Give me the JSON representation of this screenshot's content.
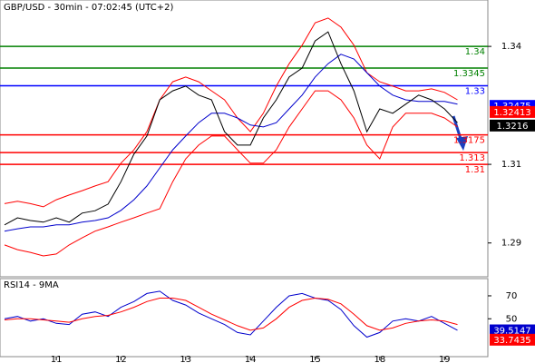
{
  "chart_data": [
    {
      "type": "line",
      "title": "GBP/USD - 30min - 07:02:45 (UTC+2)",
      "x": [
        0.2,
        0.4,
        0.6,
        0.8,
        1.0,
        1.2,
        1.4,
        1.6,
        1.8,
        2.0,
        2.2,
        2.4,
        2.6,
        2.8,
        3.0,
        3.2,
        3.4,
        3.6,
        3.8,
        4.0,
        4.2,
        4.4,
        4.6,
        4.8,
        5.0,
        5.2,
        5.4,
        5.6,
        5.8,
        6.0,
        6.2,
        6.4,
        6.6,
        6.8,
        7.0,
        7.2
      ],
      "xlim": [
        0.13,
        7.67
      ],
      "ylim": [
        1.2814,
        1.3518
      ],
      "yticks": [
        1.29,
        1.31,
        1.34
      ],
      "series": [
        {
          "color": "#ff0000",
          "values": [
            1.3,
            1.3006,
            1.3,
            1.2992,
            1.301,
            1.3022,
            1.3033,
            1.3045,
            1.3056,
            1.3103,
            1.3137,
            1.3183,
            1.3264,
            1.331,
            1.3322,
            1.331,
            1.3287,
            1.3264,
            1.3218,
            1.3183,
            1.323,
            1.3299,
            1.3356,
            1.3403,
            1.346,
            1.3472,
            1.3449,
            1.3403,
            1.3333,
            1.331,
            1.3299,
            1.3287,
            1.3287,
            1.3292,
            1.3283,
            1.3264
          ]
        },
        {
          "color": "#ff0000",
          "values": [
            1.2895,
            1.2883,
            1.2876,
            1.2867,
            1.2872,
            1.2895,
            1.2913,
            1.293,
            1.2941,
            1.2953,
            1.2964,
            1.2976,
            1.2987,
            1.3056,
            1.3114,
            1.3149,
            1.3172,
            1.3172,
            1.3137,
            1.3103,
            1.3103,
            1.3137,
            1.3195,
            1.3241,
            1.3287,
            1.3287,
            1.3264,
            1.3218,
            1.3149,
            1.3114,
            1.3195,
            1.323,
            1.323,
            1.323,
            1.3218,
            1.3195
          ]
        },
        {
          "color": "#0000cc",
          "values": [
            1.293,
            1.2936,
            1.2941,
            1.2941,
            1.2946,
            1.2946,
            1.2953,
            1.2957,
            1.2964,
            1.2983,
            1.301,
            1.3045,
            1.3091,
            1.3137,
            1.3172,
            1.3206,
            1.323,
            1.323,
            1.3218,
            1.32,
            1.3195,
            1.3206,
            1.3241,
            1.3276,
            1.3322,
            1.3356,
            1.338,
            1.3368,
            1.3333,
            1.3299,
            1.3276,
            1.3264,
            1.326,
            1.326,
            1.326,
            1.3253
          ]
        },
        {
          "color": "#000000",
          "values": [
            1.2946,
            1.2964,
            1.2957,
            1.2953,
            1.2964,
            1.2953,
            1.2976,
            1.2982,
            1.2999,
            1.3056,
            1.3126,
            1.3172,
            1.3264,
            1.3287,
            1.3299,
            1.3276,
            1.3264,
            1.3183,
            1.3149,
            1.3149,
            1.3218,
            1.3264,
            1.3322,
            1.3345,
            1.3414,
            1.3437,
            1.3356,
            1.3287,
            1.3183,
            1.3241,
            1.323,
            1.3253,
            1.3276,
            1.3264,
            1.3241,
            1.3206
          ]
        }
      ],
      "levels": [
        {
          "value": 1.34,
          "color": "#008000"
        },
        {
          "value": 1.3345,
          "color": "#008000"
        },
        {
          "value": 1.33,
          "color": "#0000ff"
        },
        {
          "value": 1.3175,
          "color": "#ff0000"
        },
        {
          "value": 1.313,
          "color": "#ff0000"
        },
        {
          "value": 1.31,
          "color": "#ff0000"
        }
      ],
      "markers": [
        {
          "value": 1.32475,
          "color": "#0000ff"
        },
        {
          "value": 1.32413,
          "color": "#ff0000"
        },
        {
          "value": 1.3216,
          "color": "#000000"
        }
      ]
    },
    {
      "type": "line",
      "title": "RSI14 - 9MA",
      "x": [
        0.2,
        0.4,
        0.6,
        0.8,
        1.0,
        1.2,
        1.4,
        1.6,
        1.8,
        2.0,
        2.2,
        2.4,
        2.6,
        2.8,
        3.0,
        3.2,
        3.4,
        3.6,
        3.8,
        4.0,
        4.2,
        4.4,
        4.6,
        4.8,
        5.0,
        5.2,
        5.4,
        5.6,
        5.8,
        6.0,
        6.2,
        6.4,
        6.6,
        6.8,
        7.0,
        7.2
      ],
      "xlim": [
        0.13,
        7.67
      ],
      "xticks": [
        {
          "value": 1,
          "label": "11"
        },
        {
          "value": 2,
          "label": "12"
        },
        {
          "value": 3,
          "label": "13"
        },
        {
          "value": 4,
          "label": "14"
        },
        {
          "value": 5,
          "label": "15"
        },
        {
          "value": 6,
          "label": "18"
        },
        {
          "value": 7,
          "label": "19"
        }
      ],
      "ylim": [
        17,
        85
      ],
      "yticks": [
        50,
        70
      ],
      "series": [
        {
          "color": "#0000cc",
          "values": [
            50,
            52,
            48,
            50,
            46,
            45,
            54,
            56,
            52,
            60,
            65,
            72,
            74,
            66,
            62,
            55,
            50,
            45,
            38,
            36,
            48,
            60,
            70,
            72,
            68,
            66,
            58,
            44,
            34,
            38,
            48,
            50,
            48,
            52,
            46,
            40
          ]
        },
        {
          "color": "#ff0000",
          "values": [
            49,
            50,
            50,
            49,
            48,
            47,
            50,
            52,
            53,
            56,
            60,
            65,
            68,
            68,
            66,
            60,
            54,
            49,
            44,
            40,
            42,
            50,
            60,
            66,
            68,
            67,
            63,
            54,
            44,
            40,
            42,
            46,
            48,
            49,
            48,
            45
          ]
        }
      ],
      "markers": [
        {
          "value": 39.5147,
          "color": "#0000cc"
        },
        {
          "value": 33.7435,
          "color": "#ff0000"
        }
      ]
    }
  ]
}
